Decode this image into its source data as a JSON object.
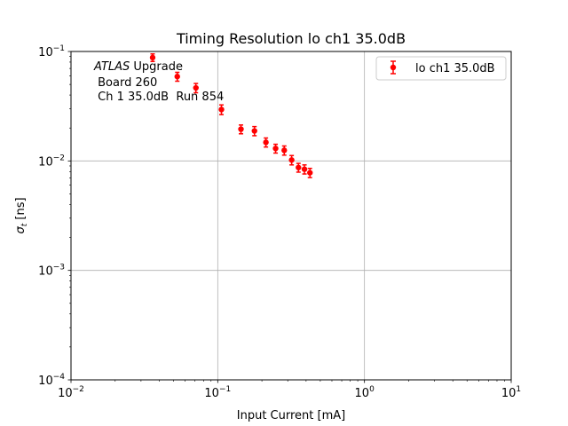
{
  "chart_data": {
    "type": "scatter",
    "title": "Timing Resolution lo ch1 35.0dB",
    "xlabel": "Input Current [mA]",
    "ylabel": "σ_t [ns]",
    "xscale": "log",
    "yscale": "log",
    "xlim": [
      0.01,
      10
    ],
    "ylim": [
      0.0001,
      0.1
    ],
    "grid": true,
    "legend_position": "upper right",
    "x_ticks": [
      {
        "value": 0.01,
        "base": "10",
        "exp": "−2"
      },
      {
        "value": 0.1,
        "base": "10",
        "exp": "−1"
      },
      {
        "value": 1,
        "base": "10",
        "exp": "0"
      },
      {
        "value": 10,
        "base": "10",
        "exp": "1"
      }
    ],
    "y_ticks": [
      {
        "value": 0.0001,
        "base": "10",
        "exp": "−4"
      },
      {
        "value": 0.001,
        "base": "10",
        "exp": "−3"
      },
      {
        "value": 0.01,
        "base": "10",
        "exp": "−2"
      },
      {
        "value": 0.1,
        "base": "10",
        "exp": "−1"
      }
    ],
    "annotation": {
      "italic": "ATLAS",
      "rest": " Upgrade",
      "line2": " Board 260",
      "line3": " Ch 1 35.0dB  Run 854"
    },
    "series": [
      {
        "name": "lo ch1 35.0dB",
        "color": "#ff0000",
        "x": [
          0.036,
          0.053,
          0.071,
          0.106,
          0.144,
          0.178,
          0.213,
          0.248,
          0.284,
          0.319,
          0.355,
          0.39,
          0.425
        ],
        "y": [
          0.088,
          0.059,
          0.0465,
          0.0295,
          0.0195,
          0.0188,
          0.0148,
          0.013,
          0.0125,
          0.0102,
          0.0087,
          0.0084,
          0.0078
        ],
        "yerr": [
          0.007,
          0.0055,
          0.0045,
          0.003,
          0.0018,
          0.0018,
          0.0014,
          0.0012,
          0.0012,
          0.001,
          0.0008,
          0.0008,
          0.00075
        ]
      }
    ]
  }
}
